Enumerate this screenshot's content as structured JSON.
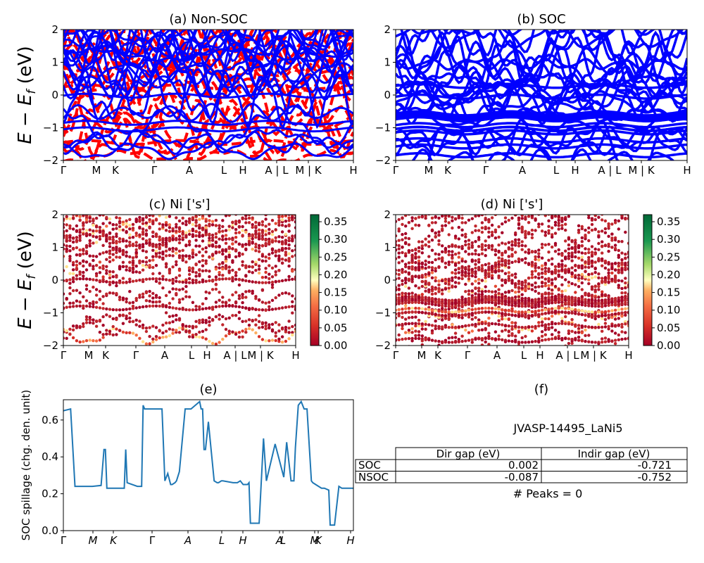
{
  "chart_data": [
    {
      "id": "a",
      "type": "line",
      "title": "(a) Non-SOC",
      "ylabel": "E − E_f (eV)",
      "ylim": [
        -2,
        2
      ],
      "yticks": [
        "2",
        "1",
        "0",
        "−1",
        "−2"
      ],
      "xticks": [
        "Γ",
        "M",
        "K",
        "Γ",
        "A",
        "L",
        "H",
        "A | L",
        "M | K",
        "H"
      ],
      "series": [
        {
          "style": "dashed",
          "color": "#ff0000"
        },
        {
          "style": "solid",
          "color": "#0000ff"
        }
      ]
    },
    {
      "id": "b",
      "type": "line",
      "title": "(b) SOC",
      "ylim": [
        -2,
        2
      ],
      "yticks": [
        "2",
        "1",
        "0",
        "−1",
        "−2"
      ],
      "xticks": [
        "Γ",
        "M",
        "K",
        "Γ",
        "A",
        "L",
        "H",
        "A | L",
        "M | K",
        "H"
      ],
      "series": [
        {
          "style": "solid",
          "color": "#0000ff"
        }
      ]
    },
    {
      "id": "c",
      "type": "scatter",
      "title": "(c)  Ni ['s']",
      "ylabel": "E − E_f (eV)",
      "ylim": [
        -2,
        2
      ],
      "yticks": [
        "2",
        "1",
        "0",
        "−1",
        "−2"
      ],
      "xticks": [
        "Γ",
        "M",
        "K",
        "Γ",
        "A",
        "L",
        "H",
        "A | L",
        "M | K",
        "H"
      ],
      "colorbar": {
        "min": 0,
        "max": 0.37,
        "ticks": [
          "0.35",
          "0.30",
          "0.25",
          "0.20",
          "0.15",
          "0.10",
          "0.05",
          "0.00"
        ],
        "colormap": "RdYlGn"
      }
    },
    {
      "id": "d",
      "type": "scatter",
      "title": "(d) Ni ['s']",
      "ylim": [
        -2,
        2
      ],
      "yticks": [
        "2",
        "1",
        "0",
        "−1",
        "−2"
      ],
      "xticks": [
        "Γ",
        "M",
        "K",
        "Γ",
        "A",
        "L",
        "H",
        "A | L",
        "M | K",
        "H"
      ],
      "colorbar": {
        "min": 0,
        "max": 0.37,
        "ticks": [
          "0.35",
          "0.30",
          "0.25",
          "0.20",
          "0.15",
          "0.10",
          "0.05",
          "0.00"
        ],
        "colormap": "RdYlGn"
      }
    },
    {
      "id": "e",
      "type": "line",
      "title": "(e)",
      "ylabel": "SOC spillage (chg. den. unit)",
      "ylim": [
        0,
        0.71
      ],
      "yticks": [
        "0.6",
        "0.4",
        "0.2",
        "0.0"
      ],
      "xticks": [
        "Γ",
        "M",
        "K",
        "Γ",
        "A",
        "L",
        "H",
        "A",
        "L",
        "M",
        "K",
        "H"
      ],
      "series": [
        {
          "color": "#1f77b4",
          "x": [
            0,
            0.025,
            0.04,
            0.05,
            0.1,
            0.13,
            0.14,
            0.145,
            0.15,
            0.155,
            0.2,
            0.21,
            0.215,
            0.22,
            0.255,
            0.27,
            0.275,
            0.28,
            0.285,
            0.3,
            0.34,
            0.35,
            0.36,
            0.37,
            0.375,
            0.385,
            0.39,
            0.4,
            0.42,
            0.44,
            0.47,
            0.475,
            0.48,
            0.485,
            0.49,
            0.5,
            0.52,
            0.53,
            0.535,
            0.545,
            0.55,
            0.585,
            0.595,
            0.6,
            0.61,
            0.62,
            0.635,
            0.64,
            0.645,
            0.65,
            0.66,
            0.675,
            0.69,
            0.7,
            0.73,
            0.76,
            0.77,
            0.785,
            0.795,
            0.8,
            0.81,
            0.82,
            0.83,
            0.84,
            0.855,
            0.86,
            0.87,
            0.89,
            0.9,
            0.915,
            0.92,
            0.935,
            0.95,
            0.96,
            0.97,
            1.0
          ],
          "y": [
            0.65,
            0.66,
            0.24,
            0.24,
            0.24,
            0.245,
            0.44,
            0.44,
            0.23,
            0.23,
            0.23,
            0.23,
            0.44,
            0.26,
            0.24,
            0.24,
            0.68,
            0.66,
            0.66,
            0.66,
            0.66,
            0.27,
            0.31,
            0.25,
            0.25,
            0.26,
            0.27,
            0.32,
            0.66,
            0.66,
            0.7,
            0.66,
            0.66,
            0.44,
            0.44,
            0.59,
            0.27,
            0.26,
            0.26,
            0.27,
            0.27,
            0.26,
            0.26,
            0.26,
            0.27,
            0.25,
            0.25,
            0.26,
            0.04,
            0.04,
            0.04,
            0.04,
            0.5,
            0.27,
            0.47,
            0.29,
            0.48,
            0.27,
            0.27,
            0.45,
            0.68,
            0.7,
            0.66,
            0.66,
            0.27,
            0.26,
            0.25,
            0.23,
            0.23,
            0.22,
            0.03,
            0.03,
            0.24,
            0.23,
            0.23,
            0.23
          ]
        }
      ]
    }
  ],
  "panel_f": {
    "title": "(f)",
    "material": "JVASP-14495_LaNi5",
    "table": {
      "headers": [
        "Dir gap (eV)",
        "Indir gap (eV)"
      ],
      "rows": [
        {
          "label": "SOC",
          "dir": "0.002",
          "indir": "-0.721"
        },
        {
          "label": "NSOC",
          "dir": "-0.087",
          "indir": "-0.752"
        }
      ]
    },
    "peaks": "# Peaks = 0"
  }
}
